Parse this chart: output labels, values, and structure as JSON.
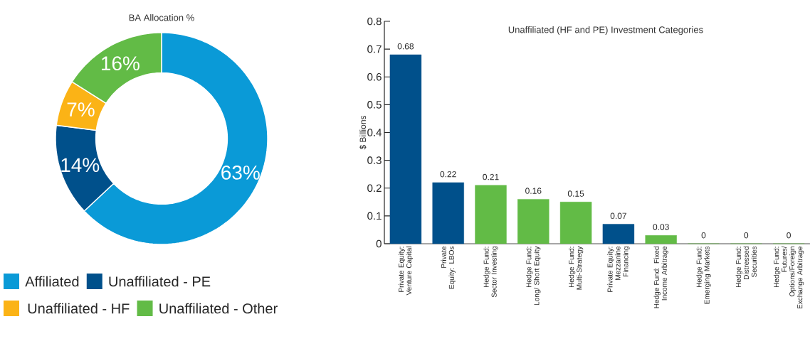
{
  "chart_data": [
    {
      "type": "donut",
      "title": "BA Allocation %",
      "categories": [
        "Affiliated",
        "Unaffiliated - PE",
        "Unaffiliated - HF",
        "Unaffiliated - Other"
      ],
      "values": [
        63,
        14,
        7,
        16
      ],
      "colors": [
        "#0a9ad7",
        "#00508b",
        "#fbb316",
        "#62bb46"
      ],
      "value_labels": [
        "63%",
        "14%",
        "7%",
        "16%"
      ],
      "legend": "bottom"
    },
    {
      "type": "bar",
      "title": "Unaffiliated (HF and PE) Investment Categories",
      "ylabel": "$ Billions",
      "categories": [
        "Private Equity: Venture Capital",
        "Private Equity: LBOs",
        "Hedge Fund: Sector Investing",
        "Hedge Fund: Long/ Short Equity",
        "Hedge Fund: Multi-Strategy",
        "Private Equity: Mezzanine Financing",
        "Hedge Fund: Fixed Income Arbitrage",
        "Hedge Fund: Emerging Markets",
        "Hedge Fund: Distressed Securities",
        "Hedge Fund: Futures/ Options/Foreign Exchange Arbitrage"
      ],
      "values": [
        0.68,
        0.22,
        0.21,
        0.16,
        0.15,
        0.07,
        0.03,
        0,
        0,
        0
      ],
      "colors": [
        "#00508b",
        "#00508b",
        "#62bb46",
        "#62bb46",
        "#62bb46",
        "#00508b",
        "#62bb46",
        "#62bb46",
        "#62bb46",
        "#62bb46"
      ],
      "data_labels": true,
      "ylim": [
        0,
        0.8
      ],
      "yticks": [
        0,
        0.1,
        0.2,
        0.3,
        0.4,
        0.5,
        0.6,
        0.7,
        0.8
      ],
      "grid": false
    }
  ]
}
